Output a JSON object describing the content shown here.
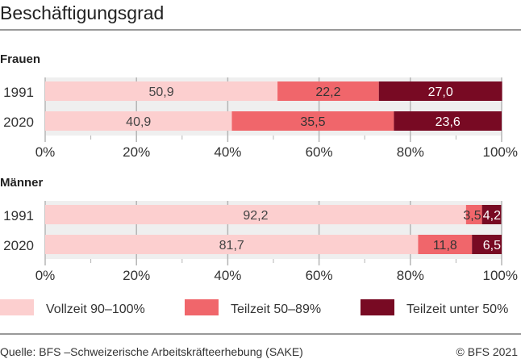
{
  "title": "Beschäftigungsgrad",
  "footer": {
    "source": "Quelle: BFS –Schweizerische Arbeitskräfteerhebung (SAKE)",
    "copyright": "© BFS 2021"
  },
  "colors": {
    "vollzeit": "#fccfcf",
    "teilzeit_50_89": "#f0666b",
    "teilzeit_unter_50": "#780a23",
    "plot_bg": "#efefef",
    "grid": "#b5b5b5"
  },
  "legend": [
    "Vollzeit 90–100%",
    "Teilzeit 50–89%",
    "Teilzeit unter 50%"
  ],
  "chart_data": [
    {
      "type": "bar",
      "stacked": true,
      "orientation": "horizontal",
      "title": "Frauen",
      "categories": [
        "1991",
        "2020"
      ],
      "series": [
        {
          "name": "Vollzeit 90–100%",
          "values": [
            50.9,
            40.9
          ],
          "labels": [
            "50,9",
            "40,9"
          ]
        },
        {
          "name": "Teilzeit 50–89%",
          "values": [
            22.2,
            35.5
          ],
          "labels": [
            "22,2",
            "35,5"
          ]
        },
        {
          "name": "Teilzeit unter 50%",
          "values": [
            27.0,
            23.6
          ],
          "labels": [
            "27,0",
            "23,6"
          ]
        }
      ],
      "xlim": [
        0,
        100
      ],
      "xticks": [
        "0%",
        "20%",
        "40%",
        "60%",
        "80%",
        "100%"
      ],
      "grid": true,
      "legend_position": "bottom"
    },
    {
      "type": "bar",
      "stacked": true,
      "orientation": "horizontal",
      "title": "Männer",
      "categories": [
        "1991",
        "2020"
      ],
      "series": [
        {
          "name": "Vollzeit 90–100%",
          "values": [
            92.2,
            81.7
          ],
          "labels": [
            "92,2",
            "81,7"
          ]
        },
        {
          "name": "Teilzeit 50–89%",
          "values": [
            3.5,
            11.8
          ],
          "labels": [
            "3,5",
            "11,8"
          ]
        },
        {
          "name": "Teilzeit unter 50%",
          "values": [
            4.2,
            6.5
          ],
          "labels": [
            "4,2",
            "6,5"
          ]
        }
      ],
      "xlim": [
        0,
        100
      ],
      "xticks": [
        "0%",
        "20%",
        "40%",
        "60%",
        "80%",
        "100%"
      ],
      "grid": true,
      "legend_position": "bottom"
    }
  ]
}
